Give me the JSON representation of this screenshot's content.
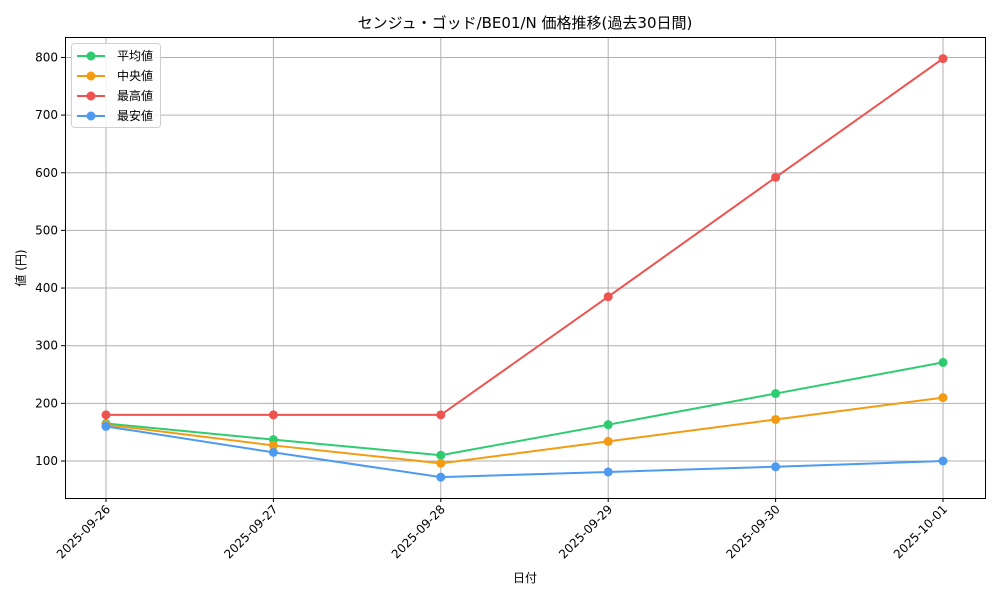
{
  "chart_data": {
    "type": "line",
    "title": "センジュ・ゴッド/BE01/N 価格推移(過去30日間)",
    "xlabel": "日付",
    "ylabel": "値 (円)",
    "categories": [
      "2025-09-26",
      "2025-09-27",
      "2025-09-28",
      "2025-09-29",
      "2025-09-30",
      "2025-10-01"
    ],
    "series": [
      {
        "name": "平均値",
        "color": "#2ecc71",
        "values": [
          165,
          137,
          110,
          163,
          217,
          271
        ]
      },
      {
        "name": "中央値",
        "color": "#f39c12",
        "values": [
          163,
          127,
          96,
          134,
          172,
          210
        ]
      },
      {
        "name": "最高値",
        "color": "#ef5350",
        "values": [
          180,
          180,
          180,
          385,
          592,
          798
        ]
      },
      {
        "name": "最安値",
        "color": "#4e9af1",
        "values": [
          160,
          115,
          72,
          81,
          90,
          100
        ]
      }
    ],
    "yticks": [
      100,
      200,
      300,
      400,
      500,
      600,
      700,
      800
    ],
    "ylim": [
      36,
      836
    ],
    "grid": true,
    "legend_position": "upper left"
  }
}
